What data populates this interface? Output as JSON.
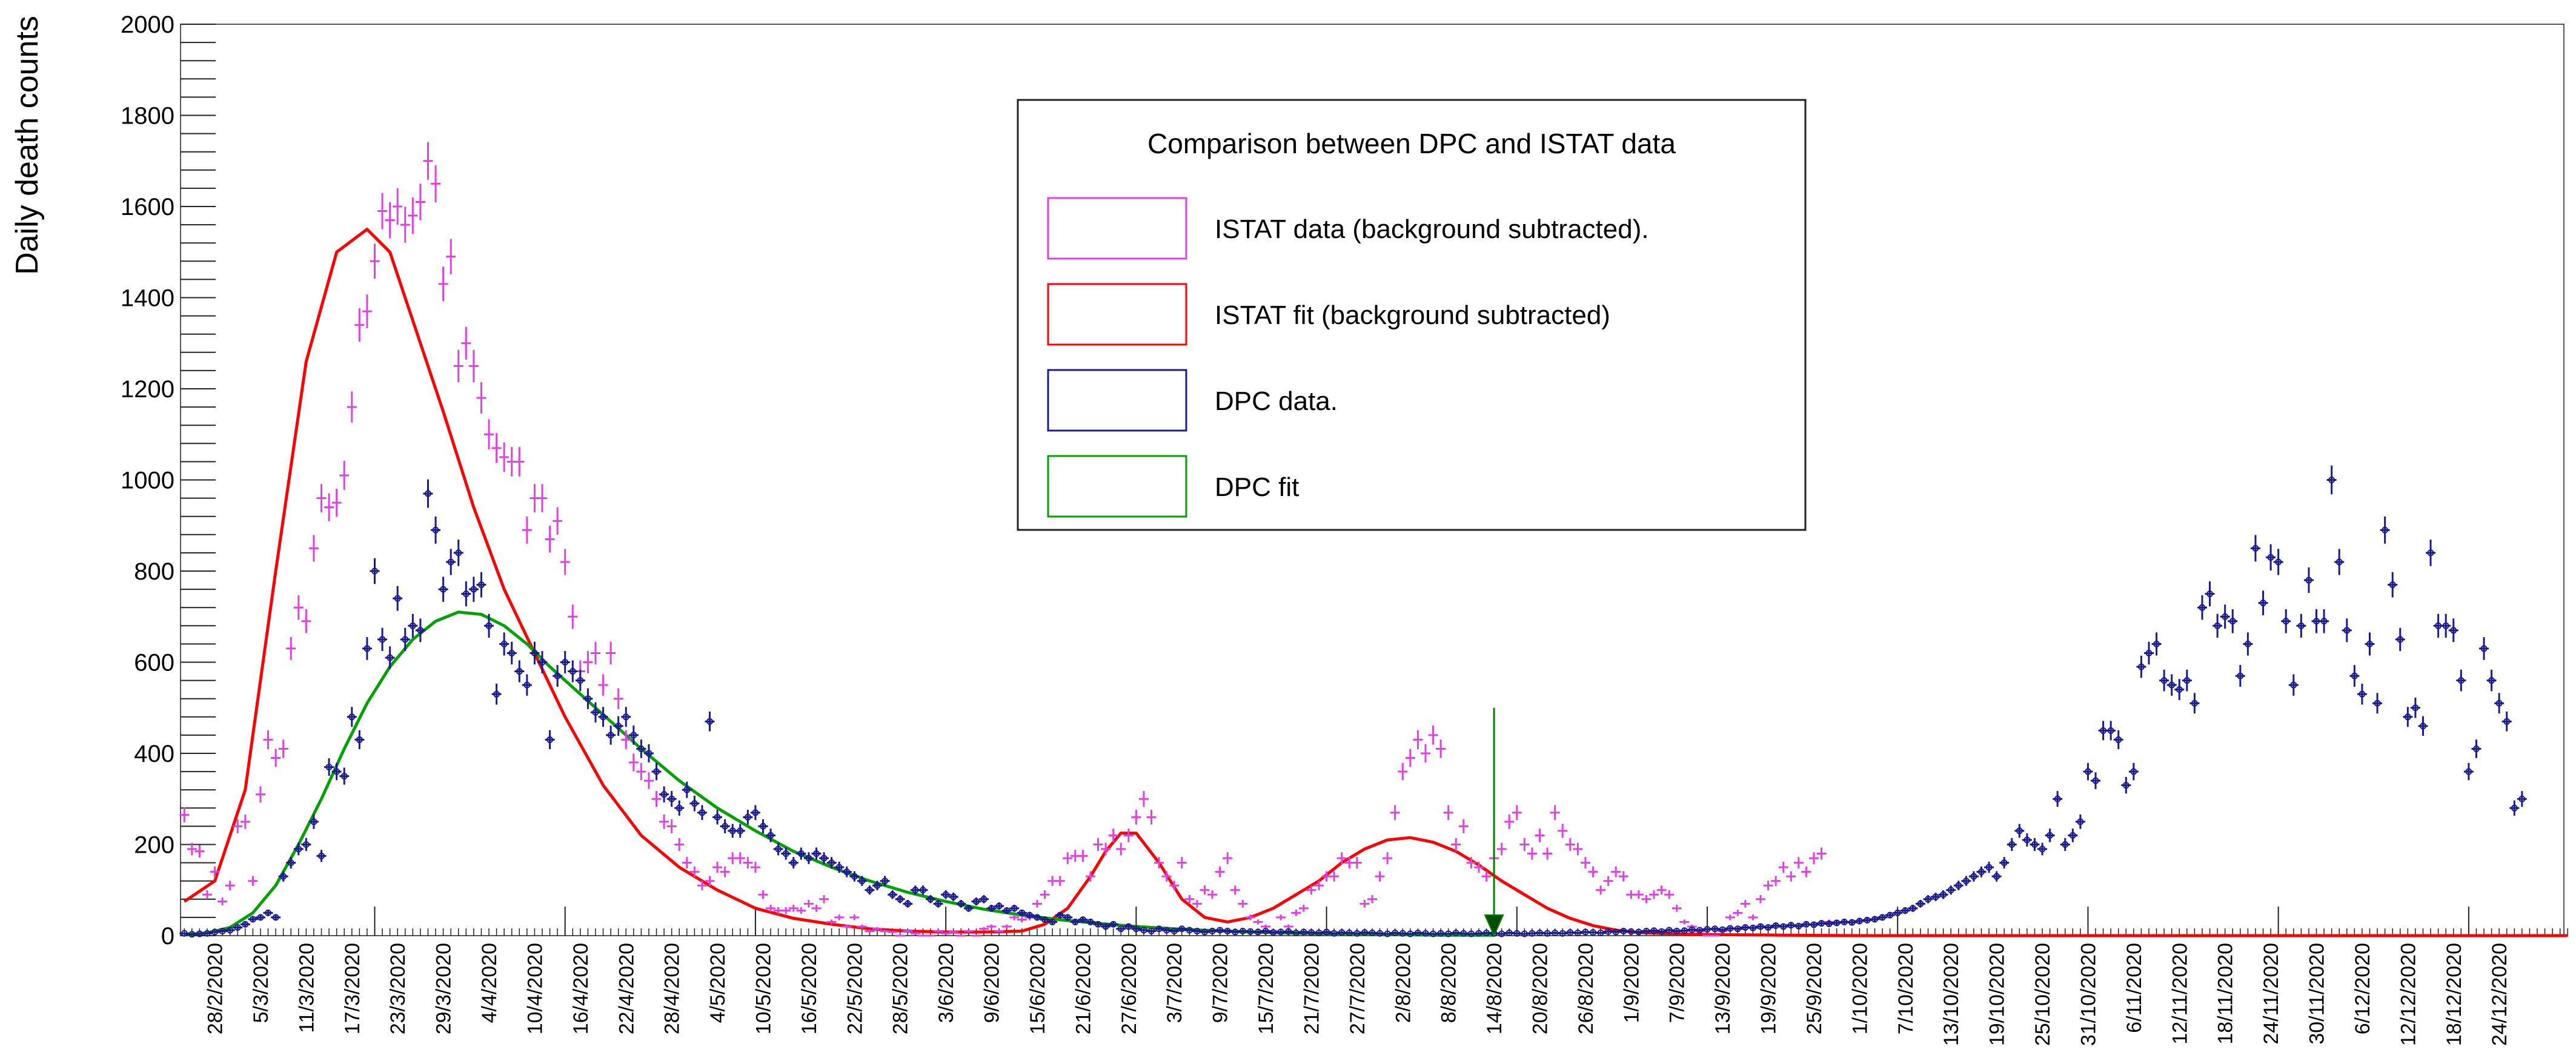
{
  "chart_data": {
    "type": "scatter",
    "title": "",
    "xlabel": "",
    "ylabel": "Daily death counts",
    "ylim": [
      0,
      2000
    ],
    "ytick_labels": [
      "0",
      "200",
      "400",
      "600",
      "800",
      "1000",
      "1200",
      "1400",
      "1600",
      "1800",
      "2000"
    ],
    "x_start_date": "24/2/2020",
    "x_days": 313,
    "xtick_labels": [
      "28/2/2020",
      "5/3/2020",
      "11/3/2020",
      "17/3/2020",
      "23/3/2020",
      "29/3/2020",
      "4/4/2020",
      "10/4/2020",
      "16/4/2020",
      "22/4/2020",
      "28/4/2020",
      "4/5/2020",
      "10/5/2020",
      "16/5/2020",
      "22/5/2020",
      "28/5/2020",
      "3/6/2020",
      "9/6/2020",
      "15/6/2020",
      "21/6/2020",
      "27/6/2020",
      "3/7/2020",
      "9/7/2020",
      "15/7/2020",
      "21/7/2020",
      "27/7/2020",
      "2/8/2020",
      "8/8/2020",
      "14/8/2020",
      "20/8/2020",
      "26/8/2020",
      "1/9/2020",
      "7/9/2020",
      "13/9/2020",
      "19/9/2020",
      "25/9/2020",
      "1/10/2020",
      "7/10/2020",
      "13/10/2020",
      "19/10/2020",
      "25/10/2020",
      "31/10/2020",
      "6/11/2020",
      "12/11/2020",
      "18/11/2020",
      "24/11/2020",
      "30/11/2020",
      "6/12/2020",
      "12/12/2020",
      "18/12/2020",
      "24/12/2020"
    ],
    "xtick_days": [
      4,
      10,
      16,
      22,
      28,
      34,
      40,
      46,
      52,
      58,
      64,
      70,
      76,
      82,
      88,
      94,
      100,
      106,
      112,
      118,
      124,
      130,
      136,
      142,
      148,
      154,
      160,
      166,
      172,
      178,
      184,
      190,
      196,
      202,
      208,
      214,
      220,
      226,
      232,
      238,
      244,
      250,
      256,
      262,
      268,
      274,
      280,
      286,
      292,
      298,
      304
    ],
    "major_tick_days": [
      25,
      50,
      75,
      100,
      125,
      150,
      175,
      200,
      225,
      250,
      275,
      300
    ],
    "legend": {
      "title": "Comparison between DPC and ISTAT data",
      "entries": [
        {
          "label": "ISTAT data (background subtracted).",
          "color": "#e040e0"
        },
        {
          "label": "ISTAT fit (background subtracted)",
          "color": "#ff0000"
        },
        {
          "label": "DPC data.",
          "color": "#1a1a8c"
        },
        {
          "label": "DPC fit",
          "color": "#00a000"
        }
      ],
      "position": "top-center"
    },
    "marker": {
      "day": 172,
      "y_top": 500,
      "y_bottom": 0,
      "color": "#008000"
    },
    "series": [
      {
        "name": "ISTAT data (background subtracted).",
        "kind": "points",
        "color": "#e040e0",
        "start_day": 0,
        "values": [
          265,
          190,
          185,
          90,
          140,
          75,
          110,
          240,
          250,
          120,
          310,
          430,
          390,
          410,
          630,
          720,
          690,
          850,
          960,
          940,
          950,
          1010,
          1160,
          1340,
          1370,
          1480,
          1590,
          1570,
          1600,
          1560,
          1580,
          1610,
          1700,
          1650,
          1430,
          1490,
          1250,
          1300,
          1250,
          1180,
          1100,
          1070,
          1050,
          1040,
          1040,
          890,
          960,
          960,
          870,
          910,
          820,
          700,
          580,
          600,
          620,
          550,
          620,
          520,
          430,
          380,
          360,
          340,
          300,
          250,
          240,
          200,
          160,
          140,
          110,
          120,
          150,
          140,
          170,
          170,
          160,
          150,
          90,
          60,
          55,
          55,
          60,
          55,
          70,
          60,
          80,
          30,
          40,
          20,
          40,
          20,
          10,
          15,
          10,
          8,
          0,
          10,
          5,
          0,
          0,
          10,
          5,
          8,
          0,
          10,
          0,
          15,
          20,
          10,
          20,
          40,
          35,
          40,
          70,
          90,
          120,
          120,
          170,
          175,
          175,
          130,
          200,
          190,
          220,
          190,
          220,
          260,
          300,
          260,
          160,
          130,
          110,
          160,
          80,
          70,
          100,
          90,
          140,
          170,
          100,
          70,
          40,
          30,
          20,
          10,
          40,
          20,
          50,
          60,
          100,
          110,
          130,
          130,
          170,
          160,
          160,
          70,
          80,
          130,
          170,
          270,
          360,
          390,
          430,
          400,
          440,
          410,
          270,
          200,
          240,
          160,
          150,
          130,
          170,
          190,
          250,
          270,
          200,
          180,
          220,
          180,
          270,
          230,
          200,
          190,
          160,
          140,
          100,
          120,
          140,
          130,
          90,
          90,
          80,
          90,
          100,
          90,
          60,
          30,
          20,
          10,
          0,
          0,
          10,
          40,
          50,
          70,
          40,
          80,
          110,
          120,
          150,
          130,
          160,
          140,
          170,
          180,
          30
        ]
      },
      {
        "name": "DPC data.",
        "kind": "points",
        "color": "#1a1a8c",
        "start_day": 0,
        "values": [
          5,
          3,
          4,
          5,
          8,
          10,
          12,
          18,
          25,
          36,
          40,
          50,
          40,
          130,
          160,
          190,
          200,
          250,
          175,
          370,
          360,
          350,
          480,
          430,
          630,
          800,
          650,
          610,
          740,
          650,
          680,
          670,
          970,
          890,
          760,
          820,
          840,
          750,
          760,
          770,
          680,
          530,
          640,
          620,
          580,
          550,
          620,
          600,
          430,
          570,
          600,
          580,
          560,
          520,
          490,
          480,
          440,
          460,
          480,
          440,
          410,
          400,
          360,
          310,
          300,
          280,
          320,
          290,
          270,
          470,
          260,
          240,
          230,
          230,
          260,
          270,
          240,
          220,
          190,
          180,
          160,
          180,
          170,
          180,
          170,
          160,
          150,
          140,
          130,
          120,
          100,
          110,
          120,
          90,
          80,
          70,
          100,
          100,
          80,
          70,
          90,
          85,
          70,
          60,
          75,
          80,
          60,
          65,
          55,
          60,
          50,
          45,
          40,
          35,
          30,
          45,
          40,
          30,
          35,
          30,
          25,
          20,
          25,
          15,
          20,
          15,
          12,
          10,
          15,
          12,
          10,
          15,
          12,
          10,
          8,
          10,
          12,
          10,
          8,
          10,
          9,
          8,
          10,
          7,
          8,
          9,
          6,
          8,
          7,
          6,
          8,
          5,
          7,
          6,
          5,
          7,
          6,
          5,
          4,
          6,
          5,
          4,
          6,
          5,
          4,
          5,
          4,
          6,
          5,
          4,
          5,
          6,
          5,
          4,
          6,
          5,
          4,
          5,
          6,
          5,
          6,
          5,
          7,
          6,
          8,
          7,
          6,
          9,
          8,
          10,
          9,
          8,
          10,
          11,
          9,
          12,
          10,
          11,
          13,
          12,
          14,
          15,
          13,
          16,
          15,
          18,
          17,
          20,
          18,
          22,
          20,
          23,
          21,
          25,
          24,
          27,
          26,
          28,
          30,
          29,
          32,
          34,
          36,
          40,
          45,
          50,
          55,
          60,
          70,
          80,
          85,
          90,
          100,
          110,
          120,
          130,
          140,
          150,
          130,
          160,
          200,
          230,
          210,
          200,
          190,
          220,
          300,
          200,
          220,
          250,
          360,
          340,
          450,
          450,
          430,
          330,
          360,
          590,
          620,
          640,
          560,
          550,
          540,
          560,
          510,
          720,
          750,
          680,
          700,
          690,
          570,
          640,
          850,
          730,
          830,
          820,
          690,
          550,
          680,
          780,
          690,
          690,
          1000,
          820,
          670,
          570,
          530,
          640,
          510,
          890,
          770,
          650,
          480,
          500,
          460,
          840,
          680,
          680,
          670,
          560,
          360,
          410,
          630,
          560,
          510,
          470,
          280,
          300
        ]
      },
      {
        "name": "ISTAT fit (background subtracted)",
        "kind": "line",
        "color": "#ff0000",
        "x_days": [
          0,
          4,
          8,
          12,
          16,
          20,
          24,
          27,
          30,
          34,
          38,
          42,
          46,
          50,
          55,
          60,
          65,
          70,
          75,
          80,
          85,
          90,
          95,
          100,
          105,
          110,
          113,
          116,
          119,
          121,
          123,
          125,
          128,
          131,
          134,
          137,
          140,
          143,
          146,
          149,
          152,
          155,
          158,
          161,
          164,
          167,
          170,
          173,
          176,
          179,
          182,
          185,
          188,
          191,
          194,
          198,
          202,
          210,
          220,
          240,
          260,
          280,
          300,
          313
        ],
        "values": [
          75,
          120,
          320,
          800,
          1260,
          1500,
          1550,
          1500,
          1350,
          1150,
          940,
          760,
          620,
          480,
          330,
          220,
          150,
          100,
          60,
          38,
          25,
          15,
          10,
          8,
          8,
          10,
          25,
          60,
          130,
          185,
          225,
          225,
          160,
          80,
          40,
          30,
          40,
          60,
          90,
          120,
          160,
          190,
          210,
          215,
          205,
          185,
          155,
          120,
          90,
          60,
          38,
          22,
          12,
          7,
          5,
          3,
          2,
          1,
          0,
          0,
          0,
          0,
          0,
          0
        ]
      },
      {
        "name": "DPC fit",
        "kind": "line",
        "color": "#00a000",
        "x_days": [
          0,
          3,
          6,
          9,
          12,
          15,
          18,
          21,
          24,
          27,
          30,
          33,
          36,
          39,
          42,
          45,
          48,
          52,
          56,
          60,
          65,
          70,
          75,
          80,
          85,
          90,
          95,
          100,
          105,
          110,
          115,
          120,
          125,
          130,
          135,
          140,
          145,
          150,
          155,
          160,
          165,
          172
        ],
        "values": [
          2,
          6,
          18,
          50,
          110,
          200,
          300,
          410,
          510,
          590,
          650,
          690,
          710,
          705,
          680,
          640,
          590,
          530,
          470,
          410,
          340,
          280,
          230,
          185,
          150,
          120,
          95,
          75,
          58,
          45,
          35,
          27,
          20,
          15,
          11,
          8,
          6,
          4,
          3,
          2,
          1,
          1
        ]
      }
    ]
  }
}
